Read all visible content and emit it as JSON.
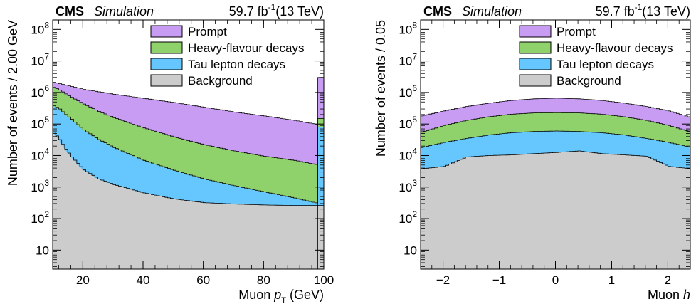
{
  "chart_data": [
    {
      "type": "area",
      "stacked": true,
      "log_scale_y": true,
      "experiment_label": "CMS",
      "experiment_sublabel": "Simulation",
      "lumi_value": "59.7 fb",
      "lumi_exp": "-1",
      "lumi_energy": "(13 TeV)",
      "ylabel": "Number of events / 2.00 GeV",
      "xlabel_prefix": "Muon ",
      "xlabel_var": "p",
      "xlabel_sub": "T",
      "xlabel_unit": " (GeV)",
      "xlim": [
        10,
        100
      ],
      "ylim": [
        2.5,
        200000000
      ],
      "xticks": [
        {
          "v": 20,
          "label": "20"
        },
        {
          "v": 40,
          "label": "40"
        },
        {
          "v": 60,
          "label": "60"
        },
        {
          "v": 80,
          "label": "80"
        },
        {
          "v": 100,
          "label": "100"
        }
      ],
      "yticks": [
        {
          "v": 10,
          "base": "10",
          "exp": ""
        },
        {
          "v": 100,
          "base": "10",
          "exp": "2"
        },
        {
          "v": 1000,
          "base": "10",
          "exp": "3"
        },
        {
          "v": 10000,
          "base": "10",
          "exp": "4"
        },
        {
          "v": 100000,
          "base": "10",
          "exp": "5"
        },
        {
          "v": 1000000,
          "base": "10",
          "exp": "6"
        },
        {
          "v": 10000000,
          "base": "10",
          "exp": "7"
        },
        {
          "v": 100000000,
          "base": "10",
          "exp": "8"
        }
      ],
      "x": [
        10,
        12,
        14,
        16,
        20,
        25,
        30,
        40,
        50,
        60,
        70,
        80,
        90,
        98
      ],
      "overflow_x": [
        98,
        100
      ],
      "series": [
        {
          "name": "Background",
          "color": "#cccccc",
          "values": [
            55000,
            32000,
            16000,
            9000,
            3500,
            1800,
            1200,
            650,
            420,
            320,
            290,
            270,
            260,
            260
          ],
          "overflow": 260
        },
        {
          "name": "Tau lepton decays",
          "color": "#66c7ff",
          "values": [
            380000,
            300000,
            200000,
            140000,
            65000,
            32000,
            18000,
            7000,
            3400,
            1800,
            1100,
            700,
            450,
            300
          ],
          "overflow": 80000
        },
        {
          "name": "Heavy-flavour decays",
          "color": "#8fd16a",
          "values": [
            1450000,
            1200000,
            900000,
            700000,
            430000,
            250000,
            160000,
            75000,
            39000,
            22000,
            14000,
            9500,
            7000,
            5000
          ],
          "overflow": 150000
        },
        {
          "name": "Prompt",
          "color": "#c79cf2",
          "values": [
            2100000,
            1900000,
            1700000,
            1550000,
            1250000,
            1050000,
            880000,
            650000,
            480000,
            340000,
            240000,
            180000,
            130000,
            95000
          ],
          "overflow": 3000000
        }
      ],
      "legend": [
        "Prompt",
        "Heavy-flavour decays",
        "Tau lepton decays",
        "Background"
      ],
      "legend_position": "top-right",
      "grid": false
    },
    {
      "type": "area",
      "stacked": true,
      "log_scale_y": true,
      "experiment_label": "CMS",
      "experiment_sublabel": "Simulation",
      "lumi_value": "59.7 fb",
      "lumi_exp": "-1",
      "lumi_energy": "(13 TeV)",
      "ylabel": "Number of events / 0.05",
      "xlabel_prefix": "Muon ",
      "xlabel_var": "h",
      "xlabel_sub": "",
      "xlabel_unit": "",
      "xlim": [
        -2.4,
        2.4
      ],
      "ylim": [
        2.5,
        200000000
      ],
      "xticks": [
        {
          "v": -2,
          "label": "−2"
        },
        {
          "v": -1,
          "label": "−1"
        },
        {
          "v": 0,
          "label": "0"
        },
        {
          "v": 1,
          "label": "1"
        },
        {
          "v": 2,
          "label": "2"
        }
      ],
      "yticks": [
        {
          "v": 10,
          "base": "10",
          "exp": ""
        },
        {
          "v": 100,
          "base": "10",
          "exp": "2"
        },
        {
          "v": 1000,
          "base": "10",
          "exp": "3"
        },
        {
          "v": 10000,
          "base": "10",
          "exp": "4"
        },
        {
          "v": 100000,
          "base": "10",
          "exp": "5"
        },
        {
          "v": 1000000,
          "base": "10",
          "exp": "6"
        },
        {
          "v": 10000000,
          "base": "10",
          "exp": "7"
        },
        {
          "v": 100000000,
          "base": "10",
          "exp": "8"
        }
      ],
      "x": [
        -2.4,
        -2.0,
        -1.6,
        -1.2,
        -0.8,
        -0.4,
        0,
        0.4,
        0.8,
        1.2,
        1.6,
        2.0,
        2.4
      ],
      "series": [
        {
          "name": "Background",
          "color": "#cccccc",
          "values": [
            3800,
            4500,
            9000,
            10000,
            10500,
            11500,
            12500,
            14000,
            11500,
            10500,
            9500,
            4500,
            3800
          ]
        },
        {
          "name": "Tau lepton decays",
          "color": "#66c7ff",
          "values": [
            18000,
            26000,
            35000,
            45000,
            53000,
            58000,
            60000,
            58000,
            53000,
            45000,
            35000,
            26000,
            18000
          ]
        },
        {
          "name": "Heavy-flavour decays",
          "color": "#8fd16a",
          "values": [
            55000,
            90000,
            130000,
            170000,
            205000,
            225000,
            230000,
            225000,
            205000,
            170000,
            130000,
            90000,
            55000
          ]
        },
        {
          "name": "Prompt",
          "color": "#c79cf2",
          "values": [
            180000,
            260000,
            360000,
            460000,
            560000,
            630000,
            660000,
            630000,
            560000,
            460000,
            360000,
            260000,
            160000
          ]
        }
      ],
      "legend": [
        "Prompt",
        "Heavy-flavour decays",
        "Tau lepton decays",
        "Background"
      ],
      "legend_position": "top-right",
      "grid": false
    }
  ]
}
